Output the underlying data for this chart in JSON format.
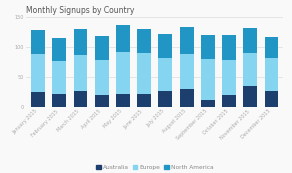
{
  "title": "Monthly Signups by Country",
  "categories": [
    "January 2015",
    "February 2015",
    "March 2015",
    "April 2015",
    "May 2015",
    "June 2015",
    "July 2015",
    "August 2015",
    "September 2015",
    "October 2015",
    "November 2015",
    "December 2015"
  ],
  "australia": [
    25,
    22,
    27,
    20,
    22,
    22,
    27,
    30,
    12,
    20,
    35,
    27
  ],
  "europe": [
    63,
    55,
    60,
    58,
    70,
    68,
    55,
    58,
    68,
    58,
    55,
    55
  ],
  "north_america": [
    40,
    38,
    43,
    40,
    45,
    40,
    40,
    45,
    40,
    42,
    42,
    35
  ],
  "colors": {
    "australia": "#1c3f6e",
    "europe": "#85d4f0",
    "north_america": "#2196c4"
  },
  "ylim": [
    0,
    150
  ],
  "yticks": [
    0,
    50,
    100,
    150
  ],
  "title_fontsize": 5.5,
  "tick_fontsize": 3.5,
  "legend_fontsize": 4.2,
  "bg_color": "#f9f9f9",
  "grid_color": "#dddddd",
  "title_color": "#555555",
  "tick_color": "#aaaaaa"
}
